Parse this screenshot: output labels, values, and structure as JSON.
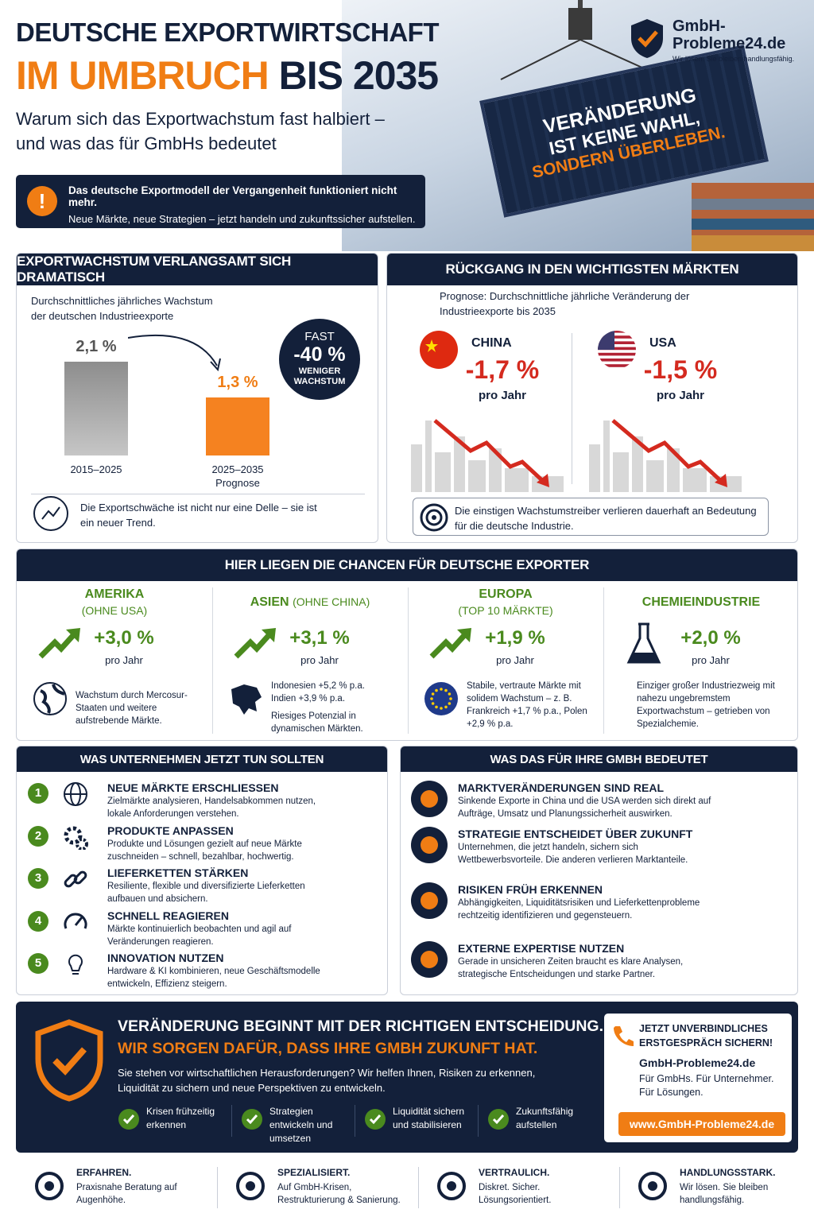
{
  "header": {
    "title_line1": "DEUTSCHE EXPORTWIRTSCHAFT",
    "title_highlight": "IM UMBRUCH",
    "title_rest": "BIS 2035",
    "subtitle_line1": "Warum sich das Exportwachstum fast halbiert –",
    "subtitle_line2": "und was das für GmbHs bedeutet",
    "alert_title": "Das deutsche Exportmodell der Vergangenheit funktioniert nicht mehr.",
    "alert_text": "Neue Märkte, neue Strategien – jetzt handeln und zukunftssicher aufstellen.",
    "container_line1": "VERÄNDERUNG",
    "container_line2": "IST KEINE WAHL,",
    "container_line3": "SONDERN ÜBERLEBEN."
  },
  "logo": {
    "name_line1": "GmbH-",
    "name_line2": "Probleme24.de",
    "tagline": "Wir lösen. Sie bleiben handlungsfähig."
  },
  "growth": {
    "title": "EXPORTWACHSTUM VERLANGSAMT SICH DRAMATISCH",
    "caption": "Durchschnittliches jährliches Wachstum der deutschen Industrieexporte",
    "bars": [
      {
        "label": "2015–2025",
        "value": 2.1,
        "value_label": "2,1 %"
      },
      {
        "label": "2025–2035",
        "sublabel": "Prognose",
        "value": 1.3,
        "value_label": "1,3 %"
      }
    ],
    "badge_top": "FAST",
    "badge_value": "-40 %",
    "badge_bottom": "WENIGER WACHSTUM",
    "note": "Die Exportschwäche ist nicht nur eine Delle – sie ist ein neuer Trend."
  },
  "decline": {
    "title": "RÜCKGANG IN DEN WICHTIGSTEN MÄRKTEN",
    "caption": "Prognose: Durchschnittliche jährliche Veränderung der Industrieexporte bis 2035",
    "markets": [
      {
        "name": "CHINA",
        "value": "-1,7 %",
        "unit": "pro Jahr"
      },
      {
        "name": "USA",
        "value": "-1,5 %",
        "unit": "pro Jahr"
      }
    ],
    "note": "Die einstigen Wachstumstreiber verlieren dauerhaft an Bedeutung für die deutsche Industrie."
  },
  "chances": {
    "title": "HIER LIEGEN DIE CHANCEN FÜR DEUTSCHE EXPORTER",
    "items": [
      {
        "title": "AMERIKA",
        "subtitle": "(OHNE USA)",
        "value": "+3,0 %",
        "unit": "pro Jahr",
        "texts": [
          "Wachstum durch Mercosur-Staaten und weitere aufstrebende Märkte."
        ]
      },
      {
        "title": "ASIEN",
        "subtitle": "(OHNE CHINA)",
        "value": "+3,1 %",
        "unit": "pro Jahr",
        "texts": [
          "Indonesien +5,2 % p.a.",
          "Indien +3,9 % p.a.",
          "Riesiges Potenzial in dynamischen Märkten."
        ]
      },
      {
        "title": "EUROPA",
        "subtitle": "(TOP 10 MÄRKTE)",
        "value": "+1,9 %",
        "unit": "pro Jahr",
        "texts": [
          "Stabile, vertraute Märkte mit solidem Wachstum – z. B. Frankreich +1,7 % p.a., Polen +2,9 % p.a."
        ]
      },
      {
        "title": "CHEMIEINDUSTRIE",
        "value": "+2,0 %",
        "unit": "pro Jahr",
        "texts": [
          "Einziger großer Industriezweig mit nahezu ungebremstem Exportwachstum – getrieben von Spezialchemie."
        ]
      }
    ]
  },
  "actions": {
    "title": "WAS UNTERNEHMEN JETZT TUN SOLLTEN",
    "items": [
      {
        "number": "1",
        "title": "NEUE MÄRKTE ERSCHLIESSEN",
        "text": "Zielmärkte analysieren, Handelsabkommen nutzen, lokale Anforderungen verstehen."
      },
      {
        "number": "2",
        "title": "PRODUKTE ANPASSEN",
        "text": "Produkte und Lösungen gezielt auf neue Märkte zuschneiden – schnell, bezahlbar, hochwertig."
      },
      {
        "number": "3",
        "title": "LIEFERKETTEN STÄRKEN",
        "text": "Resiliente, flexible und diversifizierte Lieferketten aufbauen und absichern."
      },
      {
        "number": "4",
        "title": "SCHNELL REAGIEREN",
        "text": "Märkte kontinuierlich beobachten und agil auf Veränderungen reagieren."
      },
      {
        "number": "5",
        "title": "INNOVATION NUTZEN",
        "text": "Hardware & KI kombinieren, neue Geschäftsmodelle entwickeln, Effizienz steigern."
      }
    ]
  },
  "meaning": {
    "title": "WAS DAS FÜR IHRE GMBH BEDEUTET",
    "items": [
      {
        "title": "MARKTVERÄNDERUNGEN SIND REAL",
        "text": "Sinkende Exporte in China und die USA werden sich direkt auf Aufträge, Umsatz und Planungssicherheit auswirken."
      },
      {
        "title": "STRATEGIE ENTSCHEIDET ÜBER ZUKUNFT",
        "text": "Unternehmen, die jetzt handeln, sichern sich Wettbewerbsvorteile. Die anderen verlieren Marktanteile."
      },
      {
        "title": "RISIKEN FRÜH ERKENNEN",
        "text": "Abhängigkeiten, Liquiditätsrisiken und Lieferkettenprobleme rechtzeitig identifizieren und gegensteuern."
      },
      {
        "title": "EXTERNE EXPERTISE NUTZEN",
        "text": "Gerade in unsicheren Zeiten braucht es klare Analysen, strategische Entscheidungen und starke Partner."
      }
    ]
  },
  "cta": {
    "headline1": "VERÄNDERUNG BEGINNT MIT DER RICHTIGEN ENTSCHEIDUNG.",
    "headline2": "WIR SORGEN DAFÜR, DASS IHRE GMBH ZUKUNFT HAT.",
    "text": "Sie stehen vor wirtschaftlichen Herausforderungen? Wir helfen Ihnen, Risiken zu erkennen, Liquidität zu sichern und neue Perspektiven zu entwickeln.",
    "checks": [
      "Krisen frühzeitig erkennen",
      "Strategien entwickeln und umsetzen",
      "Liquidität sichern und stabilisieren",
      "Zukunftsfähig aufstellen"
    ],
    "box_title": "JETZT UNVERBINDLICHES ERSTGESPRÄCH SICHERN!",
    "box_site": "GmbH-Probleme24.de",
    "box_tagline": "Für GmbHs. Für Unternehmer. Für Lösungen.",
    "button": "www.GmbH-Probleme24.de"
  },
  "footer": [
    {
      "title": "ERFAHREN.",
      "text": "Praxisnahe Beratung auf Augenhöhe."
    },
    {
      "title": "SPEZIALISIERT.",
      "text": "Auf GmbH-Krisen, Restrukturierung & Sanierung."
    },
    {
      "title": "VERTRAULICH.",
      "text": "Diskret. Sicher. Lösungsorientiert."
    },
    {
      "title": "HANDLUNGSSTARK.",
      "text": "Wir lösen. Sie bleiben handlungsfähig."
    }
  ]
}
